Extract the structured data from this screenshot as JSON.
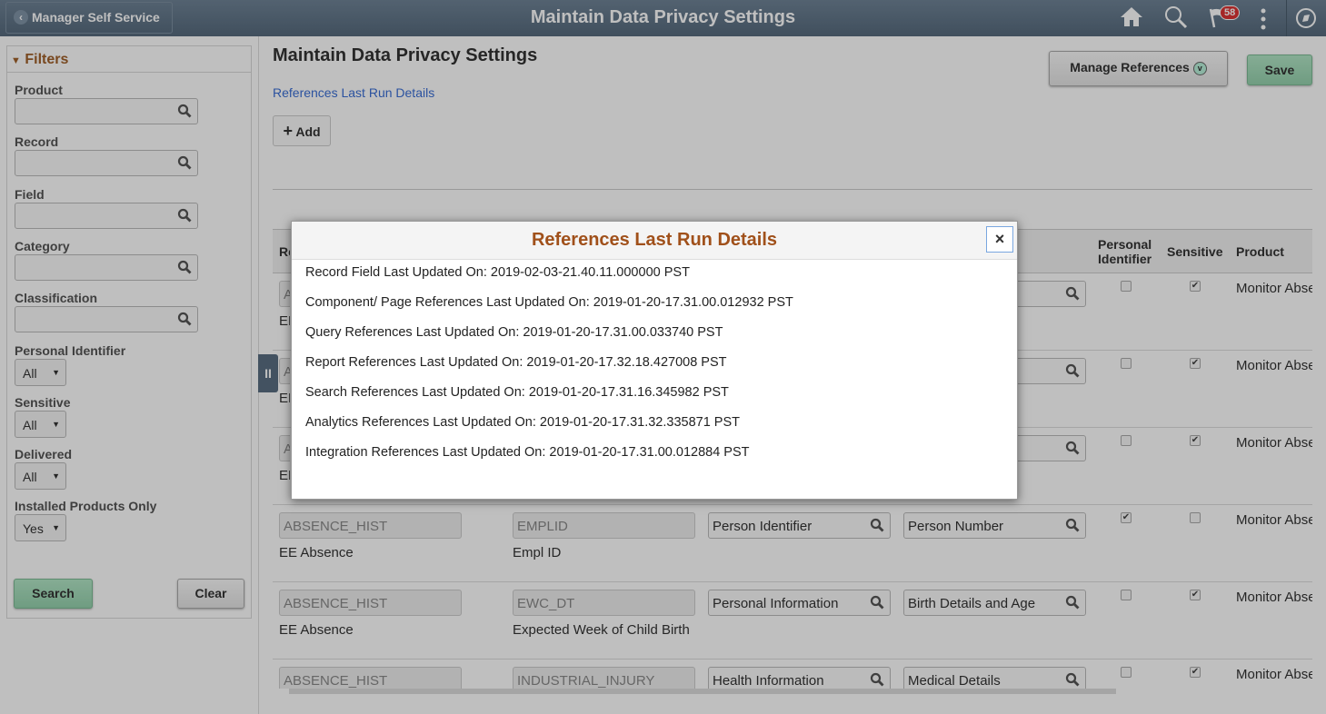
{
  "topbar": {
    "back_label": "Manager Self Service",
    "title": "Maintain Data Privacy Settings",
    "notification_count": "58"
  },
  "filters": {
    "title": "Filters",
    "product_label": "Product",
    "record_label": "Record",
    "field_label": "Field",
    "category_label": "Category",
    "classification_label": "Classification",
    "pi_label": "Personal Identifier",
    "pi_value": "All",
    "sensitive_label": "Sensitive",
    "sensitive_value": "All",
    "delivered_label": "Delivered",
    "delivered_value": "All",
    "installed_label": "Installed Products Only",
    "installed_value": "Yes",
    "search_label": "Search",
    "clear_label": "Clear"
  },
  "main": {
    "title": "Maintain Data Privacy Settings",
    "link": "References Last Run Details",
    "add_label": "Add",
    "manage_label": "Manage References",
    "save_label": "Save"
  },
  "table": {
    "headers": {
      "record": "Record",
      "personal_identifier": "Personal Identifier",
      "sensitive": "Sensitive",
      "product": "Product"
    },
    "rows": [
      {
        "record": "ABSENCE_HIST",
        "record_desc": "EE Absence",
        "field": "",
        "field_desc": "",
        "category": "",
        "subcategory": "",
        "pi": false,
        "sensitive": true,
        "product": "Monitor Absence"
      },
      {
        "record": "ABSENCE_HIST",
        "record_desc": "EE Absence",
        "field": "",
        "field_desc": "",
        "category": "",
        "subcategory": "",
        "pi": false,
        "sensitive": true,
        "product": "Monitor Absence"
      },
      {
        "record": "ABSENCE_HIST",
        "record_desc": "EE Absence",
        "field": "",
        "field_desc": "",
        "category": "",
        "subcategory": "",
        "pi": false,
        "sensitive": true,
        "product": "Monitor Absence"
      },
      {
        "record": "ABSENCE_HIST",
        "record_desc": "EE Absence",
        "field": "EMPLID",
        "field_desc": "Empl ID",
        "category": "Person Identifier",
        "subcategory": "Person Number",
        "pi": true,
        "sensitive": false,
        "product": "Monitor Absence"
      },
      {
        "record": "ABSENCE_HIST",
        "record_desc": "EE Absence",
        "field": "EWC_DT",
        "field_desc": "Expected Week of Child Birth",
        "category": "Personal Information",
        "subcategory": "Birth Details and Age",
        "pi": false,
        "sensitive": true,
        "product": "Monitor Absence"
      },
      {
        "record": "ABSENCE_HIST",
        "record_desc": "",
        "field": "INDUSTRIAL_INJURY",
        "field_desc": "",
        "category": "Health Information",
        "subcategory": "Medical Details",
        "pi": false,
        "sensitive": true,
        "product": "Monitor Absence"
      }
    ]
  },
  "modal": {
    "title": "References Last Run Details",
    "close_label": "×",
    "lines": [
      "Record Field Last Updated On: 2019-02-03-21.40.11.000000 PST",
      "Component/ Page References Last Updated On: 2019-01-20-17.31.00.012932 PST",
      "Query References Last Updated On: 2019-01-20-17.31.00.033740 PST",
      "Report References Last Updated On: 2019-01-20-17.32.18.427008 PST",
      "Search References Last Updated On: 2019-01-20-17.31.16.345982 PST",
      "Analytics References Last Updated On: 2019-01-20-17.31.32.335871 PST",
      "Integration References Last Updated On: 2019-01-20-17.31.00.012884 PST"
    ]
  }
}
